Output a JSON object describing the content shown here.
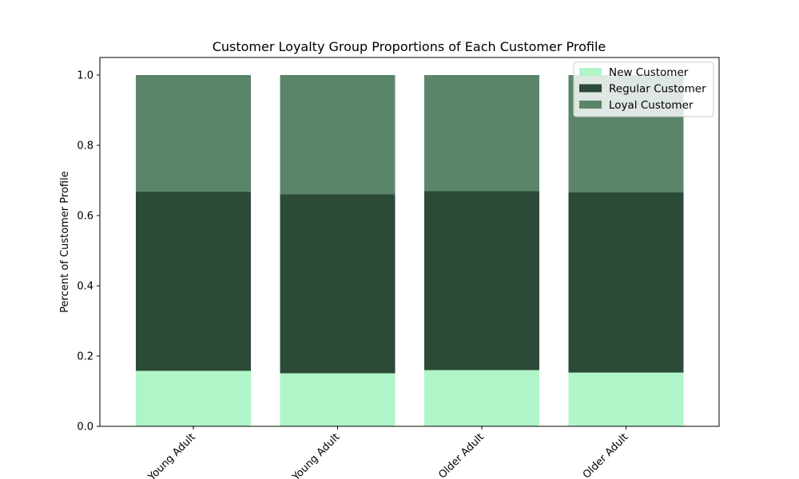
{
  "chart_data": {
    "type": "bar",
    "stacked": true,
    "title": "Customer Loyalty Group Proportions of Each Customer Profile",
    "xlabel": "",
    "ylabel": "Percent of Customer Profile",
    "ylim": [
      0,
      1.05
    ],
    "yticks": [
      "0.0",
      "0.2",
      "0.4",
      "0.6",
      "0.8",
      "1.0"
    ],
    "categories": [
      "Young Adult",
      "Young Adult",
      "Older Adult",
      "Older Adult"
    ],
    "series": [
      {
        "name": "New Customer",
        "color": "#b0f5c8",
        "values": [
          0.158,
          0.151,
          0.16,
          0.153
        ]
      },
      {
        "name": "Regular Customer",
        "color": "#2b4a37",
        "values": [
          0.51,
          0.51,
          0.51,
          0.513
        ]
      },
      {
        "name": "Loyal Customer",
        "color": "#5b8569",
        "values": [
          0.332,
          0.339,
          0.33,
          0.334
        ]
      }
    ],
    "legend_position": "top-right",
    "grid": false
  }
}
